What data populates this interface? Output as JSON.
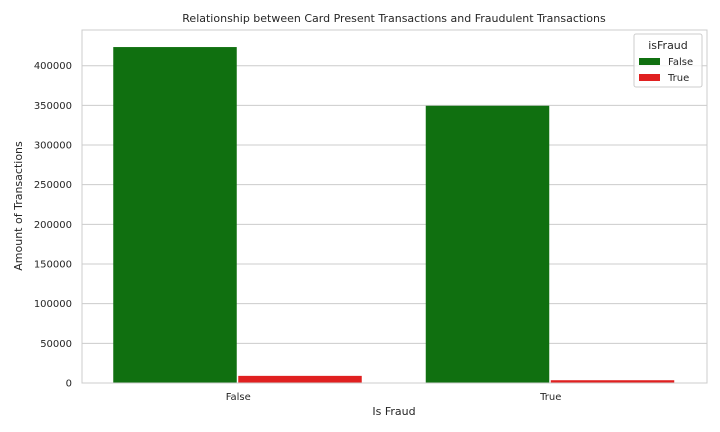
{
  "chart_data": {
    "type": "bar",
    "title": "Relationship between Card Present Transactions and Fraudulent Transactions",
    "xlabel": "Is Fraud",
    "ylabel": "Amount of Transactions",
    "categories": [
      "False",
      "True"
    ],
    "series": [
      {
        "name": "False",
        "values": [
          423500,
          349500
        ],
        "color": "#107010"
      },
      {
        "name": "True",
        "values": [
          9000,
          3500
        ],
        "color": "#e02020"
      }
    ],
    "ylim": [
      0,
      445000
    ],
    "yticks": [
      0,
      50000,
      100000,
      150000,
      200000,
      250000,
      300000,
      350000,
      400000
    ],
    "ytick_labels": [
      "0",
      "50000",
      "100000",
      "150000",
      "200000",
      "250000",
      "300000",
      "350000",
      "400000"
    ],
    "legend": {
      "title": "isFraud",
      "position": "top-right"
    },
    "grid": "horizontal"
  }
}
